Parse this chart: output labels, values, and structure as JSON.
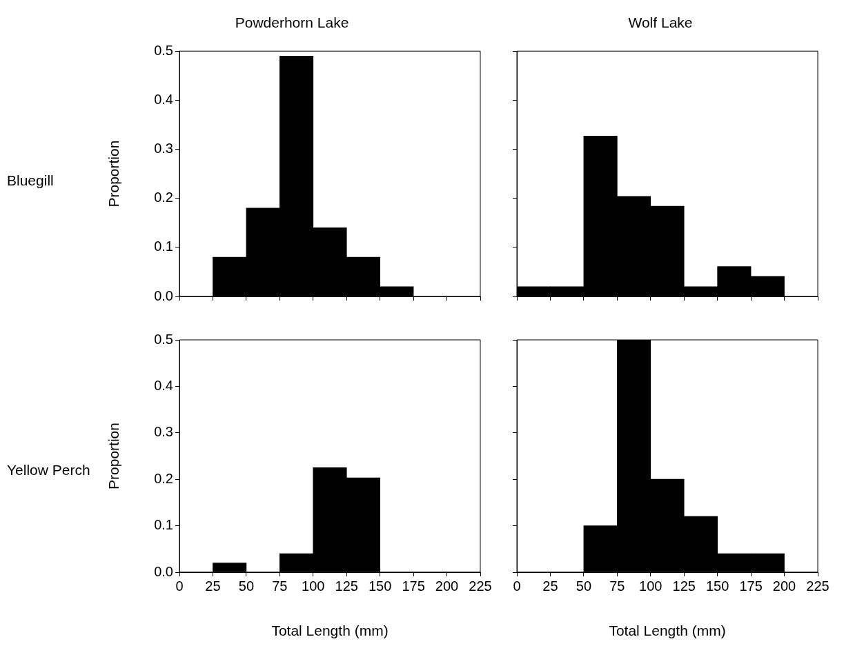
{
  "chart_data": [
    {
      "type": "histogram",
      "title": "Powderhorn Lake",
      "ylabel": "Proportion",
      "annotations": [
        "Bluegill"
      ],
      "bins": [
        0,
        25,
        50,
        75,
        100,
        125,
        150,
        175,
        200,
        225
      ],
      "values": [
        0,
        0.08,
        0.18,
        0.49,
        0.14,
        0.08,
        0.02,
        0,
        0
      ],
      "color": "#000000",
      "xlim": [
        0,
        225
      ],
      "xticks": [
        {
          "value": 0,
          "label": null
        },
        {
          "value": 25,
          "label": null
        },
        {
          "value": 50,
          "label": null
        },
        {
          "value": 75,
          "label": null
        },
        {
          "value": 100,
          "label": null
        },
        {
          "value": 125,
          "label": null
        },
        {
          "value": 150,
          "label": null
        },
        {
          "value": 175,
          "label": null
        },
        {
          "value": 200,
          "label": null
        },
        {
          "value": 225,
          "label": null
        }
      ],
      "ylim": [
        0,
        0.5
      ],
      "yticks": [
        {
          "value": 0,
          "label": "0.0"
        },
        {
          "value": 0.1,
          "label": "0.1"
        },
        {
          "value": 0.2,
          "label": "0.2"
        },
        {
          "value": 0.3,
          "label": "0.3"
        },
        {
          "value": 0.4,
          "label": "0.4"
        },
        {
          "value": 0.5,
          "label": "0.5"
        }
      ],
      "tick_labels": "y",
      "grid": false,
      "legend": false
    },
    {
      "type": "histogram",
      "title": "Wolf Lake",
      "bins": [
        0,
        25,
        50,
        75,
        100,
        125,
        150,
        175,
        200,
        225
      ],
      "values": [
        0.02,
        0.02,
        0.327,
        0.204,
        0.184,
        0.02,
        0.061,
        0.041,
        0
      ],
      "color": "#000000",
      "xlim": [
        0,
        225
      ],
      "xticks": [
        {
          "value": 0,
          "label": null
        },
        {
          "value": 25,
          "label": null
        },
        {
          "value": 50,
          "label": null
        },
        {
          "value": 75,
          "label": null
        },
        {
          "value": 100,
          "label": null
        },
        {
          "value": 125,
          "label": null
        },
        {
          "value": 150,
          "label": null
        },
        {
          "value": 175,
          "label": null
        },
        {
          "value": 200,
          "label": null
        },
        {
          "value": 225,
          "label": null
        }
      ],
      "ylim": [
        0,
        0.5
      ],
      "yticks": [
        {
          "value": 0,
          "label": null
        },
        {
          "value": 0.1,
          "label": null
        },
        {
          "value": 0.2,
          "label": null
        },
        {
          "value": 0.3,
          "label": null
        },
        {
          "value": 0.4,
          "label": null
        },
        {
          "value": 0.5,
          "label": null
        }
      ],
      "tick_labels": false,
      "grid": false,
      "legend": false
    },
    {
      "type": "histogram",
      "xlabel": "Total Length (mm)",
      "ylabel": "Proportion",
      "annotations": [
        "Yellow Perch"
      ],
      "bins": [
        0,
        25,
        50,
        75,
        100,
        125,
        150,
        175,
        200,
        225
      ],
      "values": [
        0,
        0.02,
        0,
        0.04,
        0.225,
        0.203,
        0,
        0,
        0
      ],
      "color": "#000000",
      "xlim": [
        0,
        225
      ],
      "xticks": [
        0,
        25,
        50,
        75,
        100,
        125,
        150,
        175,
        200,
        225
      ],
      "ylim": [
        0,
        0.5
      ],
      "yticks": [
        {
          "value": 0,
          "label": "0.0"
        },
        {
          "value": 0.1,
          "label": "0.1"
        },
        {
          "value": 0.2,
          "label": "0.2"
        },
        {
          "value": 0.3,
          "label": "0.3"
        },
        {
          "value": 0.4,
          "label": "0.4"
        },
        {
          "value": 0.5,
          "label": "0.5"
        }
      ],
      "grid": false,
      "legend": false
    },
    {
      "type": "histogram",
      "xlabel": "Total Length (mm)",
      "bins": [
        0,
        25,
        50,
        75,
        100,
        125,
        150,
        175,
        200,
        225
      ],
      "values": [
        0,
        0,
        0.1,
        0.5,
        0.2,
        0.12,
        0.04,
        0.04,
        0
      ],
      "color": "#000000",
      "xlim": [
        0,
        225
      ],
      "xticks": [
        0,
        25,
        50,
        75,
        100,
        125,
        150,
        175,
        200,
        225
      ],
      "ylim": [
        0,
        0.5
      ],
      "yticks": [
        {
          "value": 0,
          "label": null
        },
        {
          "value": 0.1,
          "label": null
        },
        {
          "value": 0.2,
          "label": null
        },
        {
          "value": 0.3,
          "label": null
        },
        {
          "value": 0.4,
          "label": null
        },
        {
          "value": 0.5,
          "label": null
        }
      ],
      "tick_labels": "x",
      "grid": false,
      "legend": false
    }
  ]
}
